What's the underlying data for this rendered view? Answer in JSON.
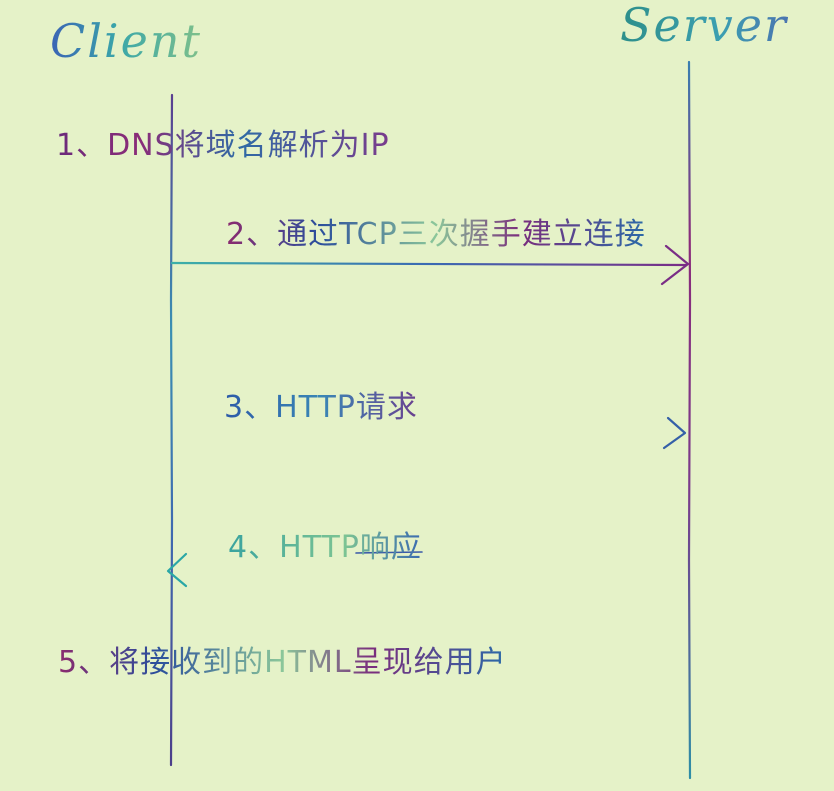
{
  "actors": {
    "client": "Client",
    "server": "Server"
  },
  "steps": {
    "step1": "1、DNS将域名解析为IP",
    "step2": "2、通过TCP三次握手建立连接",
    "step3": "3、HTTP请求",
    "step4": "4、HTTP响应",
    "step5": "5、将接收到的HTML呈现给用户"
  },
  "colors": {
    "background": "#e5f2c8",
    "client_lifeline": "#4a4a9a",
    "server_lifeline": "#7a2d86",
    "arrow_primary": "#3a6ab3",
    "arrow_secondary": "#2e9aa0"
  }
}
